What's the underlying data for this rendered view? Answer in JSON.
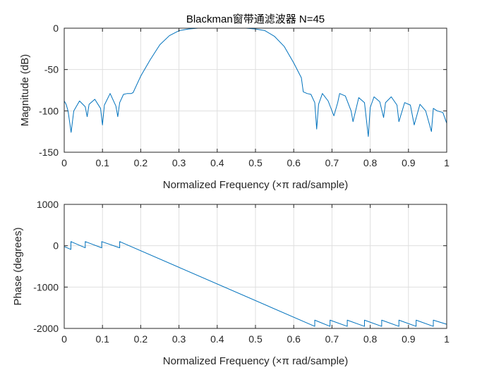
{
  "chart_data": [
    {
      "type": "line",
      "title": "Blackman窗带通滤波器 N=45",
      "xlabel": "Normalized Frequency  (×π rad/sample)",
      "ylabel": "Magnitude (dB)",
      "xlim": [
        0,
        1
      ],
      "ylim": [
        -150,
        0
      ],
      "xticks": [
        "0",
        "0.1",
        "0.2",
        "0.3",
        "0.4",
        "0.5",
        "0.6",
        "0.7",
        "0.8",
        "0.9",
        "1"
      ],
      "yticks": [
        "-150",
        "-100",
        "-50",
        "0"
      ],
      "grid": true,
      "series_color": "#0072bd",
      "series": [
        {
          "x": [
            0,
            0.005,
            0.01,
            0.018,
            0.025,
            0.04,
            0.055,
            0.06,
            0.065,
            0.08,
            0.095,
            0.1,
            0.105,
            0.12,
            0.135,
            0.14,
            0.145,
            0.155,
            0.165,
            0.175,
            0.18,
            0.2,
            0.225,
            0.25,
            0.275,
            0.3,
            0.325,
            0.35,
            0.375,
            0.4,
            0.425,
            0.45,
            0.475,
            0.5,
            0.525,
            0.55,
            0.575,
            0.6,
            0.62,
            0.625,
            0.635,
            0.645,
            0.655,
            0.66,
            0.665,
            0.675,
            0.69,
            0.705,
            0.715,
            0.72,
            0.735,
            0.75,
            0.755,
            0.77,
            0.785,
            0.795,
            0.8,
            0.81,
            0.825,
            0.835,
            0.84,
            0.855,
            0.87,
            0.875,
            0.89,
            0.905,
            0.915,
            0.93,
            0.945,
            0.96,
            0.965,
            0.975,
            0.99,
            1
          ],
          "y": [
            -88,
            -92,
            -100,
            -126,
            -100,
            -88,
            -95,
            -107,
            -92,
            -86,
            -97,
            -117,
            -93,
            -79,
            -94,
            -107,
            -90,
            -80,
            -79,
            -79,
            -78,
            -58,
            -38,
            -20,
            -9,
            -3,
            -1,
            0,
            0,
            0,
            0,
            0,
            0,
            -1,
            -3,
            -10,
            -22,
            -42,
            -60,
            -77,
            -79,
            -80,
            -90,
            -122,
            -92,
            -79,
            -88,
            -106,
            -90,
            -79,
            -82,
            -100,
            -113,
            -84,
            -90,
            -131,
            -96,
            -83,
            -89,
            -108,
            -90,
            -83,
            -93,
            -113,
            -90,
            -93,
            -117,
            -92,
            -100,
            -125,
            -97,
            -100,
            -102,
            -115
          ]
        }
      ]
    },
    {
      "type": "line",
      "xlabel": "Normalized Frequency  (×π rad/sample)",
      "ylabel": "Phase (degrees)",
      "xlim": [
        0,
        1
      ],
      "ylim": [
        -2000,
        1000
      ],
      "xticks": [
        "0",
        "0.1",
        "0.2",
        "0.3",
        "0.4",
        "0.5",
        "0.6",
        "0.7",
        "0.8",
        "0.9",
        "1"
      ],
      "yticks": [
        "-2000",
        "-1000",
        "0",
        "1000"
      ],
      "grid": true,
      "series_color": "#0072bd",
      "series": [
        {
          "x": [
            0,
            0.0175,
            0.0175,
            0.055,
            0.055,
            0.098,
            0.098,
            0.145,
            0.145,
            0.655,
            0.655,
            0.695,
            0.695,
            0.74,
            0.74,
            0.785,
            0.785,
            0.83,
            0.83,
            0.875,
            0.875,
            0.92,
            0.92,
            0.965,
            0.965,
            1
          ],
          "y": [
            -20,
            -90,
            100,
            -50,
            100,
            -50,
            100,
            -50,
            100,
            -1950,
            -1800,
            -1950,
            -1800,
            -1950,
            -1800,
            -1950,
            -1800,
            -1950,
            -1800,
            -1950,
            -1800,
            -1950,
            -1800,
            -1950,
            -1800,
            -1900
          ]
        }
      ]
    }
  ]
}
